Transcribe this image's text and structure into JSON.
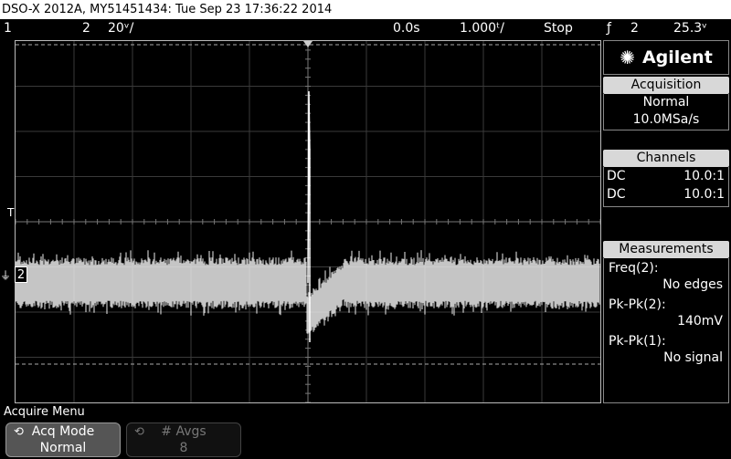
{
  "title_bar": "DSO-X 2012A, MY51451434: Tue Sep 23 17:36:22 2014",
  "status": {
    "ch1": "1",
    "ch2": "2",
    "ch2_scale": "20ᵛ/",
    "time_pos": "0.0s",
    "time_scale": "1.000ᵗ/",
    "run_state": "Stop",
    "trigger_icon": "ƒ",
    "trigger_ch": "2",
    "trigger_level": "25.3ᵛ"
  },
  "brand": "Agilent",
  "acquisition": {
    "header": "Acquisition",
    "mode": "Normal",
    "rate": "10.0MSa/s"
  },
  "channels": {
    "header": "Channels",
    "rows": [
      {
        "coupling": "DC",
        "probe": "10.0:1"
      },
      {
        "coupling": "DC",
        "probe": "10.0:1"
      }
    ]
  },
  "measurements": {
    "header": "Measurements",
    "items": [
      {
        "label": "Freq(2):",
        "value": "No edges"
      },
      {
        "label": "Pk-Pk(2):",
        "value": "140mV"
      },
      {
        "label": "Pk-Pk(1):",
        "value": "No signal"
      }
    ]
  },
  "markers": {
    "trigger": "T",
    "ch2": "2"
  },
  "menu": {
    "title": "Acquire Menu",
    "softkeys": [
      {
        "label": "Acq Mode",
        "value": "Normal"
      },
      {
        "label": "# Avgs",
        "value": "8"
      }
    ]
  },
  "colors": {
    "trace": "#e8e8e8",
    "grid": "#3a3a3a",
    "panel_header": "#d8d8d8"
  }
}
